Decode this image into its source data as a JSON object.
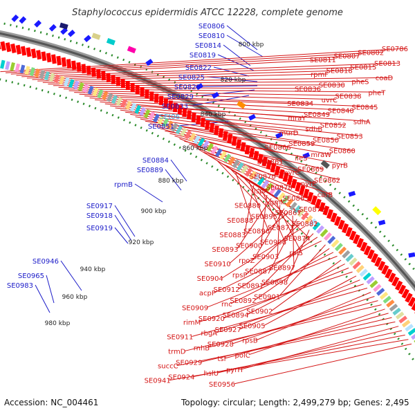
{
  "title": "Staphylococcus epidermidis ATCC 12228, complete genome",
  "footer": {
    "accession": "Accession: NC_004461",
    "summary": "Topology: circular; Length: 2,499,279 bp; Genes: 2,495"
  },
  "colors": {
    "forward_label": "#1a1ac8",
    "reverse_label": "#d41414",
    "rna_label": "#3aa0d8",
    "ring_outer": "#9a9a9a",
    "ring_inner": "#555555",
    "tick_dots": "#2a8a2a",
    "feature_arrow_forward": "#1a1aff",
    "feature_arrow_reverse": "#ff0000"
  },
  "scale_labels": [
    "800 kbp",
    "820 kbp",
    "840 kbp",
    "860 kbp",
    "880 kbp",
    "900 kbp",
    "920 kbp",
    "940 kbp",
    "960 kbp",
    "980 kbp"
  ],
  "forward_labels": [
    "SE0806",
    "SE0810",
    "SE0814",
    "SE0819",
    "SE0822",
    "SE0825",
    "SE0828",
    "SE0829",
    "SE0833",
    "SE0851",
    "SE0884",
    "SE0889",
    "rpmB",
    "SE0917",
    "SE0918",
    "SE0919",
    "SE0946",
    "SE0965",
    "SE0983"
  ],
  "rna_labels": [
    "SEt06"
  ],
  "reverse_labels": [
    "SE0786",
    "SE0802",
    "SE0807",
    "SE0811",
    "SE0813",
    "SE0815",
    "SE0818",
    "rpmF",
    "coaD",
    "pheS",
    "SE0830",
    "SE0836",
    "pheT",
    "SE0838",
    "uvrC",
    "SE0834",
    "SE0845",
    "SE0840",
    "SE0849",
    "mraY",
    "sdhA",
    "SE0852",
    "sdhB",
    "murD",
    "SE0853",
    "SE0850",
    "SE0859",
    "SE0866",
    "SE0860",
    "mraW",
    "ileS",
    "SE0861",
    "pyrB",
    "SE0869",
    "pyrC",
    "SE0870",
    "SE0862",
    "pyrE",
    "SE0878",
    "lspA",
    "carB",
    "SE0863",
    "gmk",
    "SE0880",
    "SE0872",
    "SE0867",
    "SE0895",
    "SE0888",
    "SE0882",
    "SE0873",
    "SE0896",
    "SE0883",
    "SE0874",
    "SE0906",
    "SE0900",
    "SE0893",
    "rplS",
    "SE0903",
    "rpoZ",
    "SE0910",
    "SE0897",
    "SE0887",
    "rpsP",
    "SE0904",
    "SE0898",
    "SE0891",
    "SE0912",
    "acpP",
    "SE0901",
    "SE0892",
    "rnc",
    "SE0909",
    "SE0902",
    "SE0894",
    "SE0920",
    "rimM",
    "SE0905",
    "SE0927",
    "rbgA",
    "SE0911",
    "rpsB",
    "SE0928",
    "rnhB",
    "trmD",
    "polC",
    "tsf",
    "SE0929",
    "succC",
    "pyrH",
    "hslU",
    "SE0924",
    "SE0941",
    "SE0956"
  ]
}
